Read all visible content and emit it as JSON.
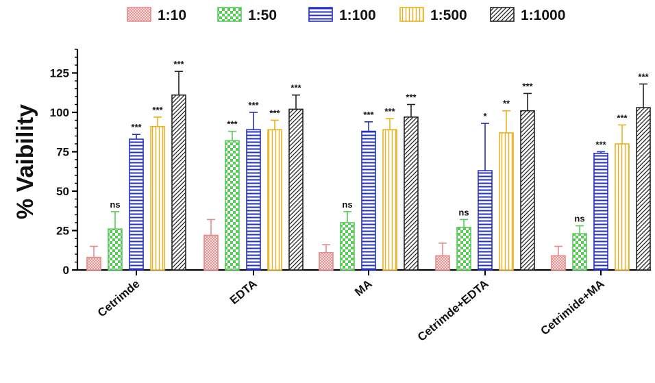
{
  "chart_data": {
    "type": "bar",
    "title": "",
    "xlabel": "",
    "ylabel": "% Vaibility",
    "ylim": [
      0,
      140
    ],
    "yticks": [
      0,
      25,
      50,
      75,
      100,
      125
    ],
    "grid": false,
    "legend_position": "top",
    "categories": [
      "Cetrimde",
      "EDTA",
      "MA",
      "Cetrimde+EDTA",
      "Cetrimide+MA"
    ],
    "series": [
      {
        "name": "1:10",
        "pattern": "crosshatch",
        "color": "#e88a8a",
        "values": [
          8,
          22,
          11,
          9,
          9
        ],
        "errors": [
          7,
          10,
          5,
          8,
          6
        ],
        "significance": [
          "",
          "",
          "",
          "",
          ""
        ]
      },
      {
        "name": "1:50",
        "pattern": "checker",
        "color": "#57c957",
        "values": [
          26,
          82,
          30,
          27,
          23
        ],
        "errors": [
          11,
          6,
          7,
          5,
          5
        ],
        "significance": [
          "ns",
          "***",
          "ns",
          "ns",
          "ns"
        ]
      },
      {
        "name": "1:100",
        "pattern": "horizontal-lines",
        "color": "#2430c0",
        "values": [
          83,
          89,
          88,
          63,
          74
        ],
        "errors": [
          3,
          11,
          6,
          30,
          1
        ],
        "significance": [
          "***",
          "***",
          "***",
          "*",
          "***"
        ]
      },
      {
        "name": "1:500",
        "pattern": "vertical-lines",
        "color": "#eab020",
        "values": [
          91,
          89,
          89,
          87,
          80
        ],
        "errors": [
          6,
          6,
          7,
          14,
          12
        ],
        "significance": [
          "***",
          "***",
          "***",
          "**",
          "***"
        ]
      },
      {
        "name": "1:1000",
        "pattern": "diagonal-lines",
        "color": "#222222",
        "values": [
          111,
          102,
          97,
          101,
          103
        ],
        "errors": [
          15,
          9,
          8,
          11,
          15
        ],
        "significance": [
          "***",
          "***",
          "***",
          "***",
          "***"
        ]
      }
    ]
  }
}
